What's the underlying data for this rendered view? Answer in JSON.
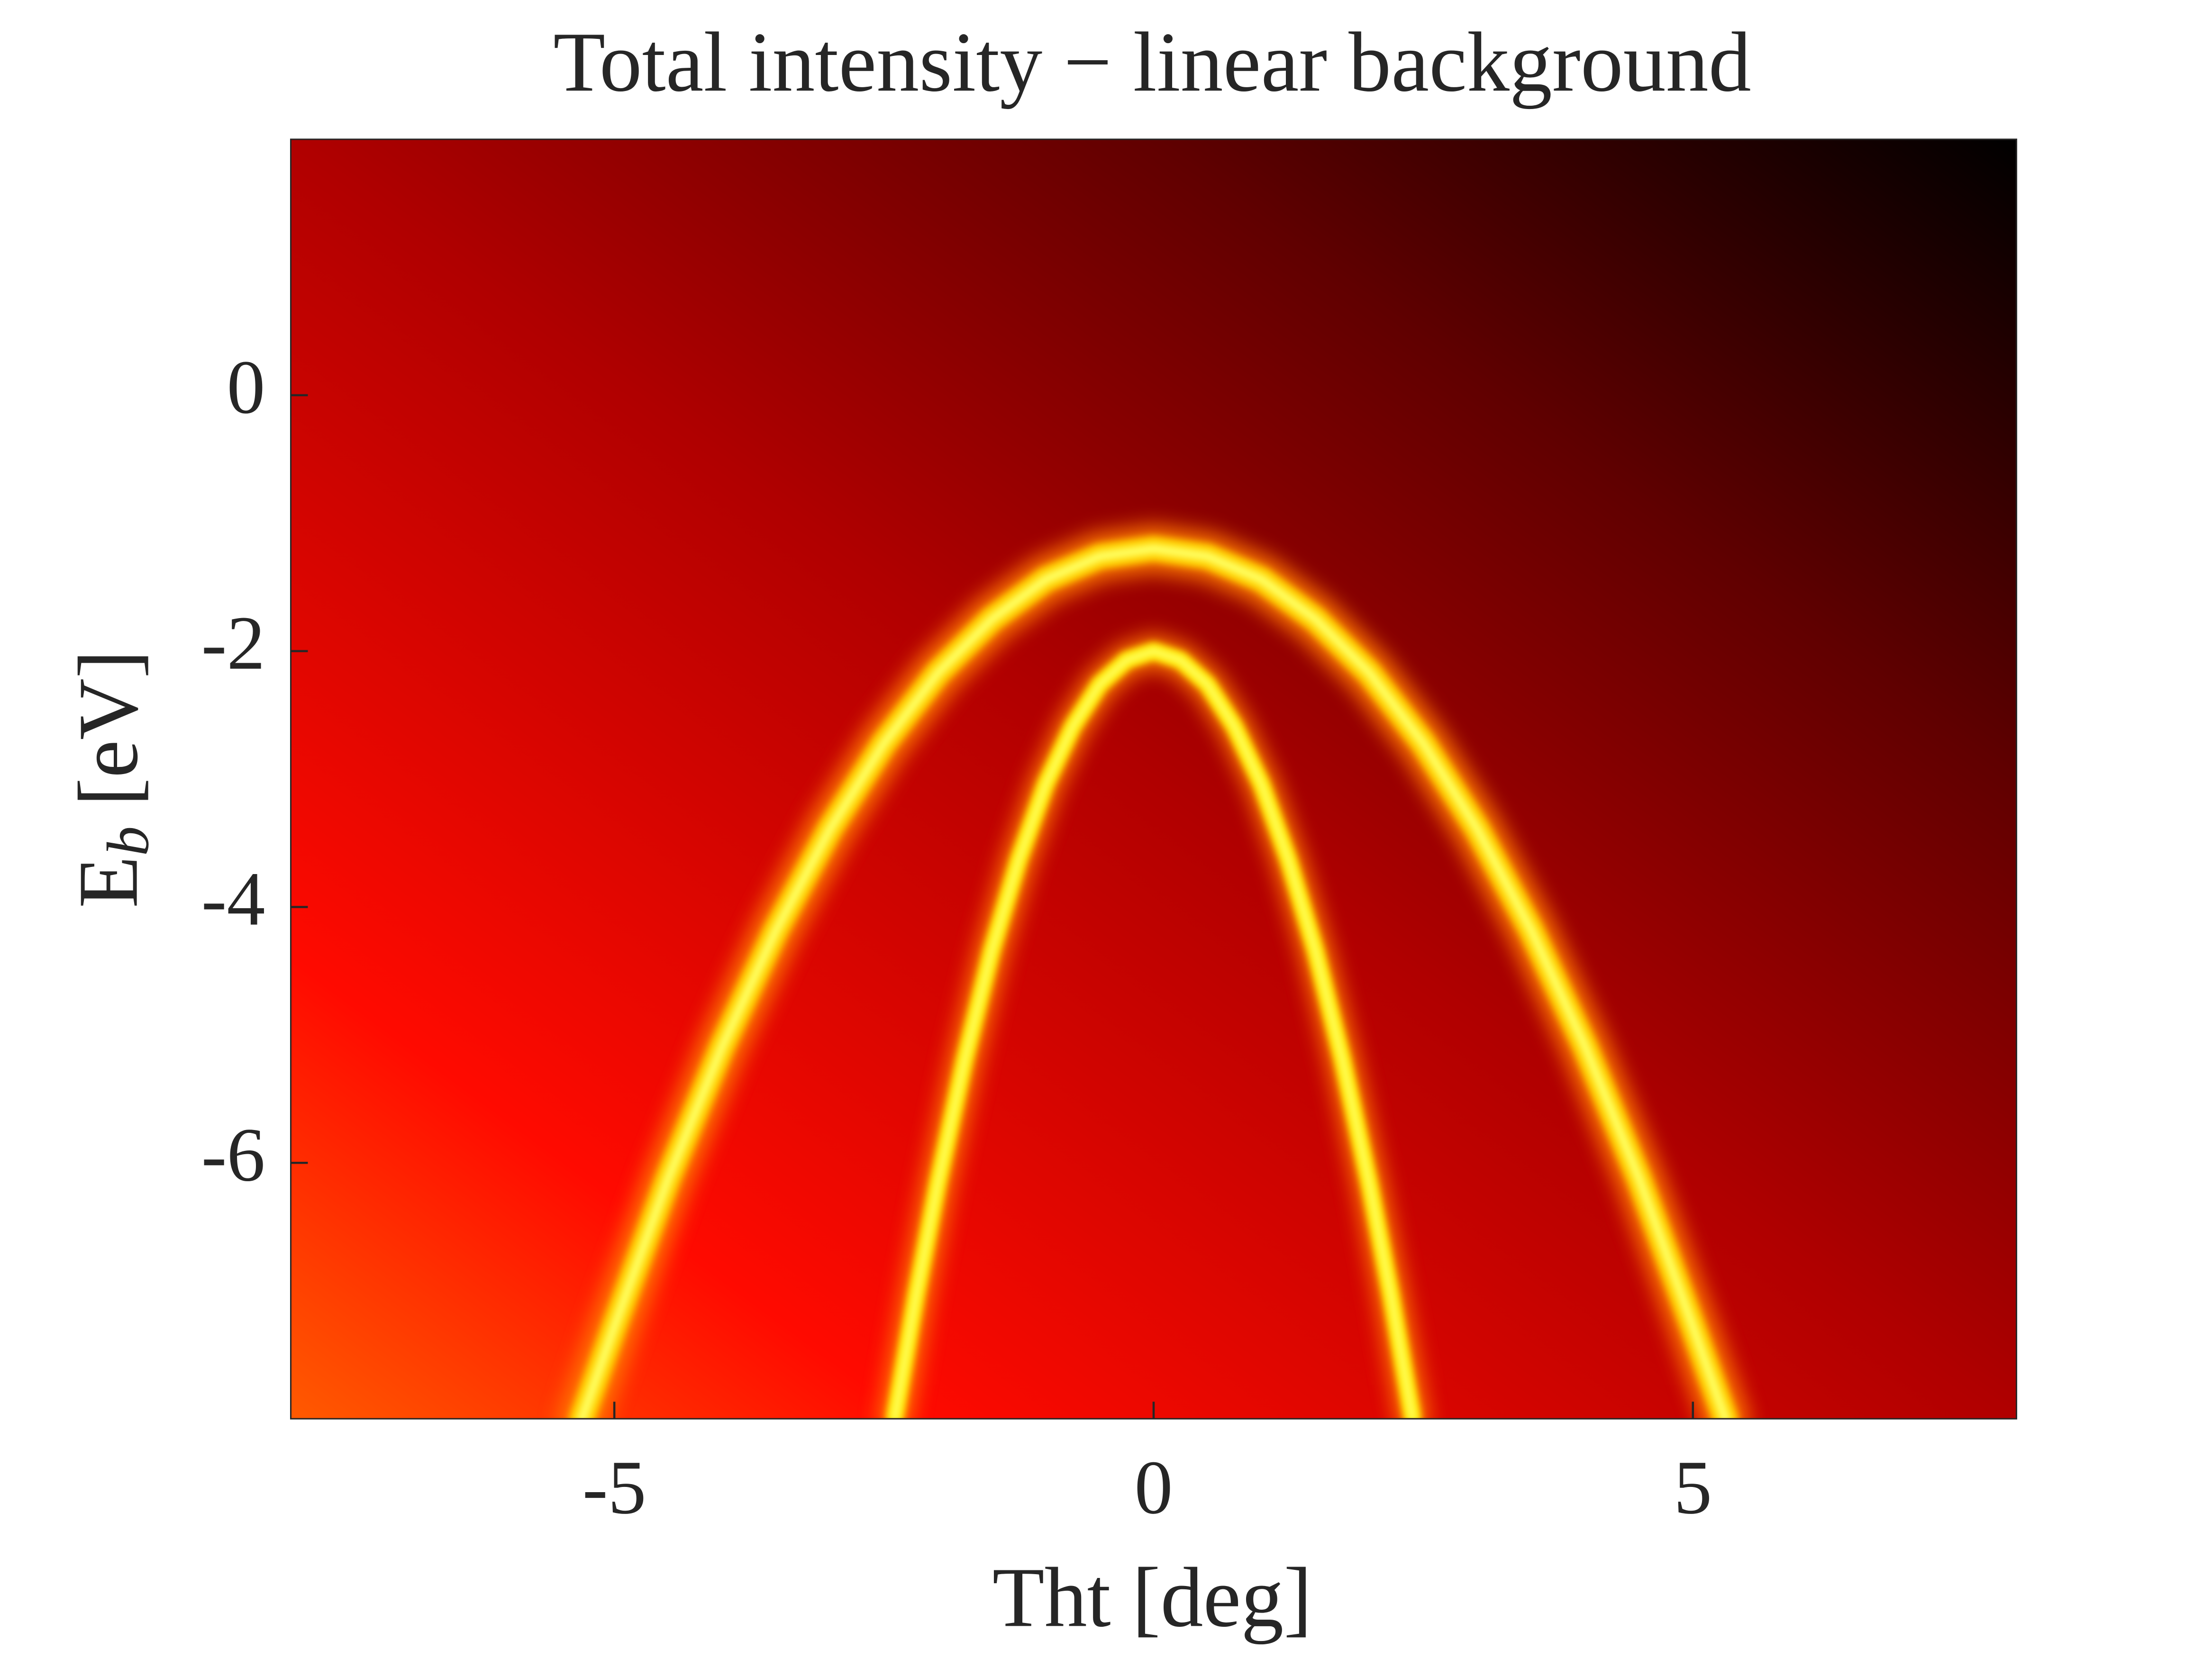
{
  "chart_data": {
    "type": "heatmap",
    "title": "Total intensity − linear background",
    "xlabel": "Tht [deg]",
    "ylabel": "E",
    "ylabel_subscript": "b",
    "ylabel_unit": "[eV]",
    "xlim": [
      -8,
      8
    ],
    "ylim": [
      -8,
      2
    ],
    "xticks": [
      -5,
      0,
      5
    ],
    "yticks": [
      -6,
      -4,
      -2,
      0
    ],
    "colormap": "hot",
    "series": [
      {
        "color": "#ffd000",
        "x": [
          -5.3,
          -5,
          -4.5,
          -4,
          -3.5,
          -3,
          -2.5,
          -2,
          -1.5,
          -1,
          -0.5,
          0,
          0.5,
          1,
          1.5,
          2,
          2.5,
          3,
          3.5,
          4,
          4.5,
          5,
          5.3
        ],
        "values": [
          -8,
          -7.28,
          -6.12,
          -5.09,
          -4.18,
          -3.39,
          -2.72,
          -2.17,
          -1.75,
          -1.44,
          -1.26,
          -1.2,
          -1.26,
          -1.44,
          -1.75,
          -2.17,
          -2.72,
          -3.39,
          -4.18,
          -5.09,
          -6.12,
          -7.28,
          -8
        ]
      },
      {
        "color": "#ffe800",
        "x": [
          -2.4,
          -2.2,
          -2,
          -1.75,
          -1.5,
          -1.25,
          -1,
          -0.75,
          -0.5,
          -0.25,
          0,
          0.25,
          0.5,
          0.75,
          1,
          1.25,
          1.5,
          1.75,
          2,
          2.2,
          2.4
        ],
        "values": [
          -7.99,
          -7.03,
          -6.16,
          -5.19,
          -4.34,
          -3.63,
          -3.04,
          -2.59,
          -2.26,
          -2.07,
          -2,
          -2.07,
          -2.26,
          -2.59,
          -3.04,
          -3.63,
          -4.34,
          -5.19,
          -6.16,
          -7.03,
          -7.99
        ]
      }
    ]
  }
}
